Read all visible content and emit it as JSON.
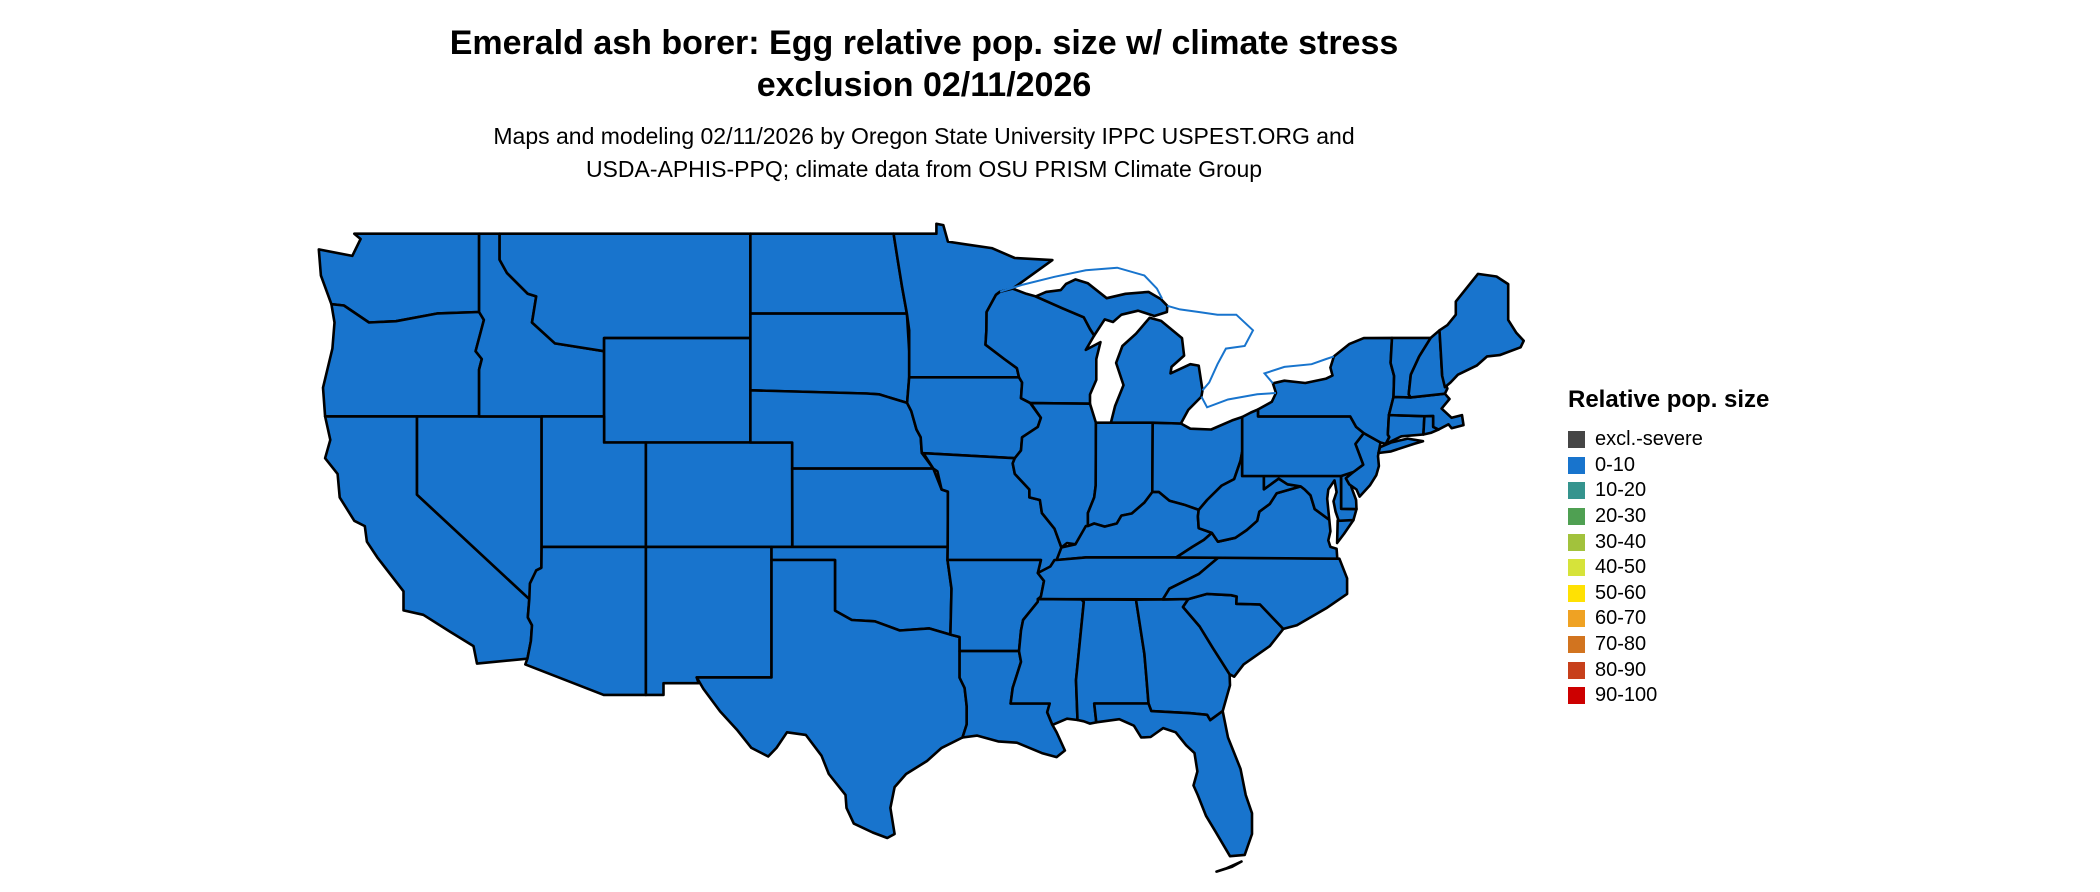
{
  "header": {
    "title": [
      "Emerald ash borer: Egg relative pop. size w/ climate stress",
      "exclusion 02/11/2026"
    ],
    "subtitle": [
      "Maps and modeling 02/11/2026 by Oregon State University IPPC USPEST.ORG and",
      "USDA-APHIS-PPQ; climate data from OSU PRISM Climate Group"
    ]
  },
  "legend": {
    "title": "Relative pop. size"
  },
  "chart_data": {
    "type": "choropleth",
    "region": "Continental United States",
    "species": "Emerald ash borer",
    "life_stage": "Egg",
    "date": "02/11/2026",
    "legend_title": "Relative pop. size",
    "categories": [
      "excl.-severe",
      "0-10",
      "10-20",
      "20-30",
      "30-40",
      "40-50",
      "50-60",
      "60-70",
      "70-80",
      "80-90",
      "90-100"
    ],
    "colors": [
      "#454545",
      "#1874cd",
      "#35948e",
      "#4fa052",
      "#a2c23c",
      "#d6e33a",
      "#ffe103",
      "#efa223",
      "#d2741f",
      "#c7401b",
      "#cd0000"
    ],
    "all_states_category": "0-10",
    "states": {
      "WA": "0-10",
      "OR": "0-10",
      "CA": "0-10",
      "NV": "0-10",
      "ID": "0-10",
      "MT": "0-10",
      "WY": "0-10",
      "UT": "0-10",
      "CO": "0-10",
      "AZ": "0-10",
      "NM": "0-10",
      "ND": "0-10",
      "SD": "0-10",
      "NE": "0-10",
      "KS": "0-10",
      "OK": "0-10",
      "TX": "0-10",
      "MN": "0-10",
      "IA": "0-10",
      "MO": "0-10",
      "AR": "0-10",
      "LA": "0-10",
      "WI": "0-10",
      "IL": "0-10",
      "IN": "0-10",
      "OH": "0-10",
      "MI": "0-10",
      "KY": "0-10",
      "TN": "0-10",
      "MS": "0-10",
      "AL": "0-10",
      "GA": "0-10",
      "FL": "0-10",
      "SC": "0-10",
      "NC": "0-10",
      "VA": "0-10",
      "WV": "0-10",
      "MD": "0-10",
      "DE": "0-10",
      "NJ": "0-10",
      "PA": "0-10",
      "NY": "0-10",
      "CT": "0-10",
      "RI": "0-10",
      "MA": "0-10",
      "VT": "0-10",
      "NH": "0-10",
      "ME": "0-10"
    }
  }
}
